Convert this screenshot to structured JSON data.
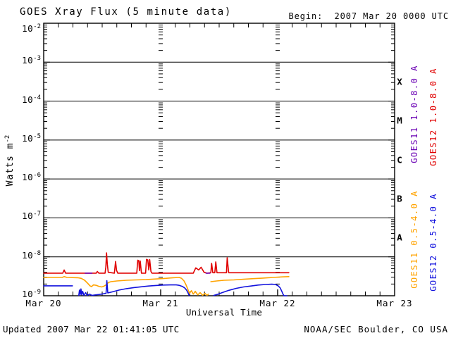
{
  "header": {
    "title": "GOES Xray Flux (5 minute data)",
    "begin_label": "Begin:  2007 Mar 20 0000 UTC"
  },
  "axes": {
    "xlabel": "Universal Time",
    "ylabel_base": "Watts m",
    "ylabel_exp": "-2"
  },
  "footer": {
    "updated": "Updated 2007 Mar 22 01:41:05 UTC",
    "source": "NOAA/SEC Boulder, CO USA"
  },
  "chart_data": {
    "type": "line",
    "title": "GOES Xray Flux (5 minute data)",
    "begin": "2007 Mar 20 0000 UTC",
    "xlabel": "Universal Time",
    "ylabel": "Watts m^-2",
    "legend_position": "right",
    "x_axis": {
      "unit": "hours since 2007 Mar 20 0000 UTC",
      "range_hours": [
        0,
        72
      ],
      "tick_labels": [
        "Mar 20",
        "Mar 21",
        "Mar 22",
        "Mar 23"
      ],
      "tick_hours": [
        0,
        24,
        48,
        72
      ],
      "minor_tick_interval_hours": 3,
      "day_marker_hours": [
        24,
        48
      ]
    },
    "y_axis": {
      "scale": "log",
      "min": 1e-09,
      "max": 0.01,
      "tick_base": "10",
      "tick_exponents": [
        -2,
        -3,
        -4,
        -5,
        -6,
        -7,
        -8,
        -9
      ],
      "unit": "Watts m^-2",
      "decade_gridlines": true
    },
    "flare_class_labels": [
      {
        "label": "X",
        "range_w_m2": [
          0.0001,
          0.001
        ]
      },
      {
        "label": "M",
        "range_w_m2": [
          1e-05,
          0.0001
        ]
      },
      {
        "label": "C",
        "range_w_m2": [
          1e-06,
          1e-05
        ]
      },
      {
        "label": "B",
        "range_w_m2": [
          1e-07,
          1e-06
        ]
      },
      {
        "label": "A",
        "range_w_m2": [
          1e-08,
          1e-07
        ]
      }
    ],
    "series": [
      {
        "name": "GOES11 1.0-8.0 A",
        "color": "#6a00b4",
        "segments": [
          [
            [
              8.5,
              3.8e-09
            ],
            [
              9.9,
              3.8e-09
            ]
          ],
          [
            [
              33.3,
              3.8e-09
            ],
            [
              34.1,
              3.8e-09
            ]
          ]
        ]
      },
      {
        "name": "GOES12 1.0-8.0 A",
        "color": "#e00000",
        "segments": [
          [
            [
              0,
              3.8e-09
            ],
            [
              3.9,
              3.8e-09
            ],
            [
              4.2,
              4.6e-09
            ],
            [
              4.5,
              3.8e-09
            ],
            [
              10.8,
              3.8e-09
            ],
            [
              11.0,
              4.2e-09
            ],
            [
              11.3,
              3.8e-09
            ],
            [
              12.6,
              3.8e-09
            ],
            [
              12.75,
              5.5e-09
            ],
            [
              12.9,
              1.27e-08
            ],
            [
              13.05,
              6.5e-09
            ],
            [
              13.25,
              4e-09
            ],
            [
              14.5,
              3.8e-09
            ],
            [
              14.75,
              7.6e-09
            ],
            [
              14.95,
              4.5e-09
            ],
            [
              15.2,
              3.8e-09
            ],
            [
              19.1,
              3.8e-09
            ],
            [
              19.3,
              8.2e-09
            ],
            [
              19.5,
              8e-09
            ],
            [
              19.65,
              4.4e-09
            ],
            [
              19.8,
              7.8e-09
            ],
            [
              20.05,
              3.8e-09
            ],
            [
              20.9,
              3.8e-09
            ],
            [
              21.1,
              8.6e-09
            ],
            [
              21.35,
              8.3e-09
            ],
            [
              21.55,
              4.6e-09
            ],
            [
              21.75,
              8.5e-09
            ],
            [
              22.0,
              4.2e-09
            ],
            [
              22.2,
              3.8e-09
            ],
            [
              30.7,
              3.8e-09
            ],
            [
              31.2,
              5.2e-09
            ],
            [
              31.8,
              4.6e-09
            ],
            [
              32.3,
              5.4e-09
            ],
            [
              32.9,
              4e-09
            ],
            [
              33.5,
              3.8e-09
            ],
            [
              34.3,
              3.9e-09
            ],
            [
              34.45,
              6.8e-09
            ],
            [
              34.7,
              3.9e-09
            ],
            [
              35.1,
              3.9e-09
            ],
            [
              35.3,
              7.4e-09
            ],
            [
              35.55,
              3.9e-09
            ],
            [
              37.5,
              3.9e-09
            ],
            [
              37.65,
              9.5e-09
            ],
            [
              37.95,
              3.9e-09
            ],
            [
              50.3,
              3.9e-09
            ]
          ]
        ]
      },
      {
        "name": "GOES11 0.5-4.0 A",
        "color": "#ffa300",
        "segments": [
          [
            [
              0,
              2.95e-09
            ],
            [
              2,
              2.95e-09
            ],
            [
              3.8,
              2.95e-09
            ],
            [
              4.2,
              3.1e-09
            ],
            [
              4.8,
              2.95e-09
            ],
            [
              7.0,
              2.9e-09
            ],
            [
              7.7,
              2.8e-09
            ],
            [
              8.4,
              2.5e-09
            ],
            [
              9.0,
              2.1e-09
            ],
            [
              9.5,
              1.8e-09
            ],
            [
              9.8,
              1.72e-09
            ],
            [
              10.2,
              1.9e-09
            ],
            [
              10.8,
              1.85e-09
            ],
            [
              11.3,
              1.75e-09
            ],
            [
              11.9,
              1.68e-09
            ],
            [
              12.3,
              1.75e-09
            ],
            [
              12.8,
              1.9e-09
            ],
            [
              13.3,
              2.2e-09
            ],
            [
              13.8,
              2.3e-09
            ],
            [
              15,
              2.4e-09
            ],
            [
              17,
              2.5e-09
            ],
            [
              19,
              2.55e-09
            ],
            [
              21,
              2.6e-09
            ],
            [
              23,
              2.7e-09
            ],
            [
              25,
              2.8e-09
            ],
            [
              26.5,
              2.9e-09
            ],
            [
              27.8,
              2.95e-09
            ],
            [
              28.3,
              2.8e-09
            ],
            [
              28.8,
              2.4e-09
            ],
            [
              29.2,
              1.9e-09
            ],
            [
              29.6,
              1.45e-09
            ],
            [
              29.9,
              1.15e-09
            ],
            [
              30.3,
              1.35e-09
            ],
            [
              30.7,
              1.1e-09
            ],
            [
              31.1,
              1.3e-09
            ],
            [
              31.6,
              1.05e-09
            ],
            [
              32.1,
              1.2e-09
            ],
            [
              32.6,
              1.03e-09
            ],
            [
              33.1,
              1.15e-09
            ],
            [
              33.5,
              1.02e-09
            ],
            [
              33.8,
              1.1e-09
            ]
          ],
          [
            [
              34.3,
              2.3e-09
            ],
            [
              35.5,
              2.4e-09
            ],
            [
              37,
              2.5e-09
            ],
            [
              39,
              2.55e-09
            ],
            [
              41,
              2.65e-09
            ],
            [
              43,
              2.75e-09
            ],
            [
              45,
              2.85e-09
            ],
            [
              47,
              2.95e-09
            ],
            [
              49,
              3.05e-09
            ],
            [
              50.3,
              3.1e-09
            ]
          ]
        ]
      },
      {
        "name": "GOES12 0.5-4.0 A",
        "color": "#1212dd",
        "segments": [
          [
            [
              0,
              1.8e-09
            ],
            [
              5.9,
              1.8e-09
            ]
          ],
          [
            [
              7.2,
              1.02e-09
            ],
            [
              7.35,
              1.4e-09
            ],
            [
              7.5,
              1.08e-09
            ],
            [
              7.65,
              1.5e-09
            ],
            [
              7.8,
              1.05e-09
            ],
            [
              8.0,
              1.3e-09
            ],
            [
              8.25,
              1.02e-09
            ],
            [
              8.6,
              1.2e-09
            ],
            [
              8.9,
              1.02e-09
            ],
            [
              9.4,
              1.1e-09
            ],
            [
              9.9,
              1.02e-09
            ],
            [
              10.6,
              1.05e-09
            ],
            [
              11.4,
              1.08e-09
            ],
            [
              12.2,
              1.12e-09
            ],
            [
              12.8,
              1.15e-09
            ],
            [
              12.95,
              2.45e-09
            ],
            [
              13.15,
              1.18e-09
            ],
            [
              14,
              1.25e-09
            ],
            [
              15.5,
              1.4e-09
            ],
            [
              17,
              1.52e-09
            ],
            [
              18.5,
              1.62e-09
            ],
            [
              20,
              1.7e-09
            ],
            [
              21.5,
              1.78e-09
            ],
            [
              23,
              1.84e-09
            ],
            [
              24.5,
              1.88e-09
            ],
            [
              26,
              1.9e-09
            ],
            [
              27.2,
              1.9e-09
            ],
            [
              27.8,
              1.85e-09
            ],
            [
              28.4,
              1.75e-09
            ],
            [
              28.9,
              1.6e-09
            ],
            [
              29.3,
              1.4e-09
            ],
            [
              29.6,
              1.2e-09
            ],
            [
              29.85,
              1e-09
            ]
          ],
          [
            [
              34.9,
              1.02e-09
            ],
            [
              35.6,
              1.08e-09
            ],
            [
              36.6,
              1.2e-09
            ],
            [
              38,
              1.38e-09
            ],
            [
              39.5,
              1.55e-09
            ],
            [
              41,
              1.68e-09
            ],
            [
              42.5,
              1.78e-09
            ],
            [
              44,
              1.88e-09
            ],
            [
              45.5,
              1.95e-09
            ],
            [
              46.8,
              1.98e-09
            ],
            [
              47.6,
              1.95e-09
            ],
            [
              48.1,
              1.8e-09
            ],
            [
              48.5,
              1.6e-09
            ],
            [
              48.85,
              1.3e-09
            ],
            [
              49.1,
              1.1e-09
            ],
            [
              49.3,
              1e-09
            ],
            [
              49.9,
              1e-09
            ]
          ]
        ]
      }
    ]
  }
}
